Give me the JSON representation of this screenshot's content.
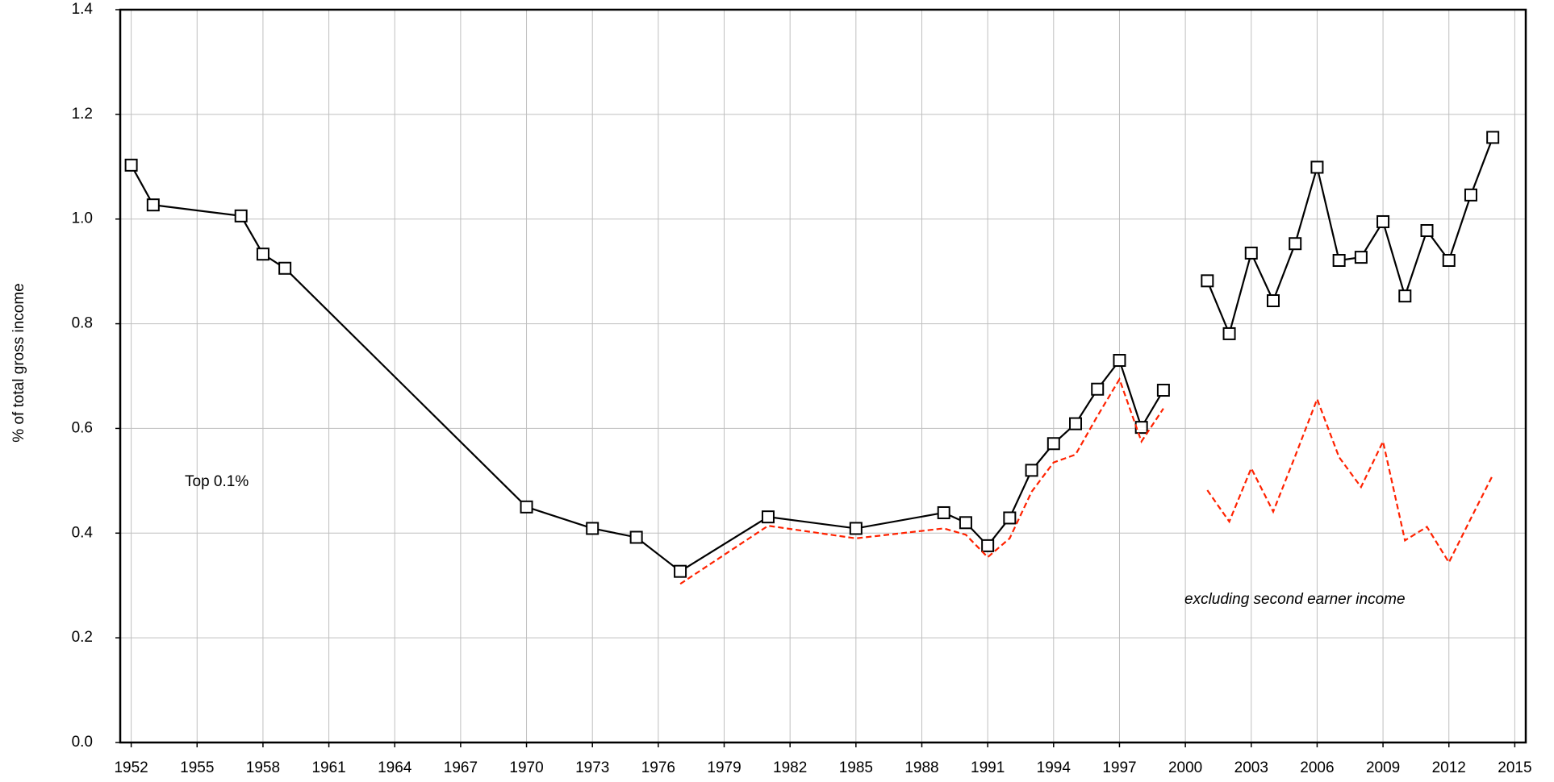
{
  "chart_data": {
    "type": "line",
    "y_label": "% of total gross income",
    "x": [
      1952,
      1953,
      1957,
      1958,
      1959,
      1970,
      1973,
      1975,
      1977,
      1981,
      1985,
      1989,
      1990,
      1991,
      1992,
      1993,
      1994,
      1995,
      1996,
      1997,
      1998,
      1999,
      2000,
      2001,
      2002,
      2003,
      2004,
      2005,
      2006,
      2007,
      2008,
      2009,
      2010,
      2011,
      2012,
      2013,
      2014
    ],
    "series": [
      {
        "color": "#000000",
        "line_style": "solid",
        "marker": "square",
        "values": [
          1.103,
          1.027,
          1.006,
          0.933,
          0.906,
          0.45,
          0.409,
          0.392,
          0.327,
          0.431,
          0.409,
          0.439,
          0.42,
          0.376,
          0.429,
          0.52,
          0.571,
          0.609,
          0.675,
          0.73,
          0.602,
          0.673,
          null,
          0.882,
          0.781,
          0.935,
          0.844,
          0.953,
          1.099,
          0.921,
          0.927,
          0.995,
          0.853,
          0.978,
          0.921,
          1.046,
          1.156
        ]
      },
      {
        "color": "#ff2200",
        "line_style": "dashed",
        "marker": "none",
        "values": [
          null,
          null,
          null,
          null,
          null,
          null,
          null,
          null,
          0.303,
          0.414,
          0.39,
          0.409,
          0.397,
          0.354,
          0.39,
          0.479,
          0.535,
          0.55,
          0.624,
          0.694,
          0.575,
          0.638,
          null,
          0.482,
          0.422,
          0.524,
          0.441,
          0.547,
          0.656,
          0.545,
          0.488,
          0.575,
          0.386,
          0.412,
          0.344,
          0.428,
          0.511
        ]
      }
    ],
    "annotations": [
      {
        "text": "Top 0.1%"
      },
      {
        "text": "excluding second earner income",
        "italic": true
      }
    ],
    "xlim": [
      1951.5,
      2015.5
    ],
    "xticks": [
      1952,
      1955,
      1958,
      1961,
      1964,
      1967,
      1970,
      1973,
      1976,
      1979,
      1982,
      1985,
      1988,
      1991,
      1994,
      1997,
      2000,
      2003,
      2006,
      2009,
      2012,
      2015
    ],
    "ylim": [
      0,
      1.4
    ],
    "yticks": [
      {
        "value": 0,
        "label": "0.0"
      },
      {
        "value": 0.2,
        "label": "0.2"
      },
      {
        "value": 0.4,
        "label": "0.4"
      },
      {
        "value": 0.6,
        "label": "0.6"
      },
      {
        "value": 0.8,
        "label": "0.8"
      },
      {
        "value": 1,
        "label": "1.0"
      },
      {
        "value": 1.2,
        "label": "1.2"
      },
      {
        "value": 1.4,
        "label": "1.4"
      }
    ],
    "grid": true
  }
}
